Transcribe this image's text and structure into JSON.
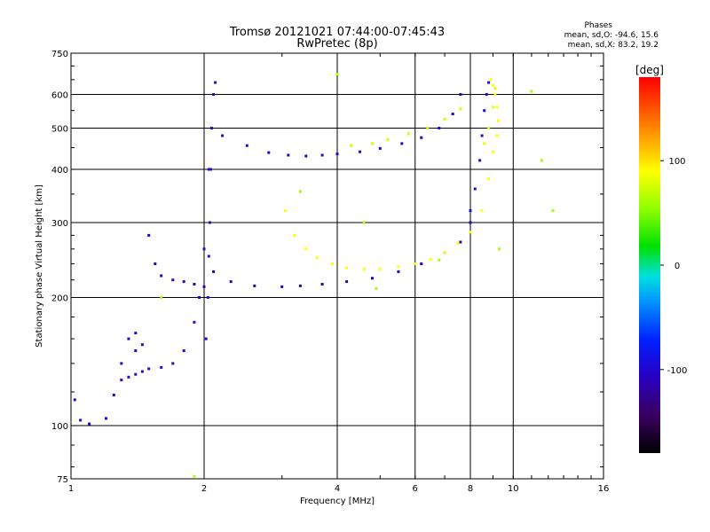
{
  "chart_data": {
    "type": "scatter",
    "title": "Tromsø 20121021 07:44:00-07:45:43",
    "subtitle": "RwPretec (8p)",
    "xlabel": "Frequency [MHz]",
    "ylabel": "Stationary phase Virtual Height [km]",
    "x_scale": "log",
    "y_scale": "log",
    "xlim": [
      1,
      16
    ],
    "ylim": [
      75,
      750
    ],
    "x_ticks": [
      1,
      2,
      4,
      6,
      8,
      10,
      16
    ],
    "x_tick_labels": [
      "1",
      "2",
      "4",
      "6",
      "8",
      "10",
      "16"
    ],
    "y_ticks": [
      75,
      100,
      200,
      300,
      400,
      500,
      600,
      750
    ],
    "y_tick_labels": [
      "75",
      "100",
      "200",
      "300",
      "400",
      "500",
      "600",
      "750"
    ],
    "grid": true,
    "stats": {
      "heading": "Phases",
      "line_o": "mean, sd,O: -94.6, 15.6",
      "line_x": "mean, sd,X:  83.2, 19.2"
    },
    "colorbar": {
      "label": "[deg]",
      "range": [
        -180,
        180
      ],
      "tick_values": [
        100,
        0,
        -100
      ],
      "tick_labels": [
        "100",
        "0",
        "-100"
      ]
    },
    "series": [
      {
        "x": [
          1.02,
          1.05,
          1.1,
          1.2,
          1.25,
          1.3,
          1.35,
          1.4,
          1.45,
          1.5,
          1.6,
          1.7,
          1.8,
          1.9,
          1.95,
          2.0,
          2.05
        ],
        "y": [
          115,
          103,
          101,
          104,
          118,
          128,
          130,
          132,
          134,
          136,
          137,
          140,
          150,
          175,
          200,
          260,
          400
        ],
        "phase": -95
      },
      {
        "x": [
          1.3,
          1.35,
          1.4,
          1.45,
          1.4
        ],
        "y": [
          140,
          160,
          150,
          155,
          165
        ],
        "phase": -100
      },
      {
        "x": [
          1.5,
          1.55,
          1.6,
          1.7,
          1.8,
          1.9,
          2.0
        ],
        "y": [
          280,
          240,
          225,
          220,
          218,
          215,
          212
        ],
        "phase": -105
      },
      {
        "x": [
          2.02,
          2.04,
          2.05,
          2.06,
          2.07,
          2.08,
          2.1,
          2.12
        ],
        "y": [
          160,
          200,
          250,
          300,
          400,
          500,
          600,
          640
        ],
        "phase": -95
      },
      {
        "x": [
          2.1,
          2.3,
          2.6,
          3.0,
          3.3,
          3.7,
          4.2,
          4.8,
          5.5,
          6.2,
          7.0,
          7.6,
          8.0
        ],
        "y": [
          230,
          218,
          213,
          212,
          213,
          215,
          218,
          222,
          230,
          240,
          255,
          270,
          300
        ],
        "phase": -110
      },
      {
        "x": [
          8.0,
          8.2,
          8.4,
          8.5,
          8.6,
          8.7,
          8.8
        ],
        "y": [
          320,
          360,
          420,
          480,
          550,
          600,
          640
        ],
        "phase": -95
      },
      {
        "x": [
          2.2,
          2.5,
          2.8,
          3.1,
          3.4,
          3.7,
          4.0,
          4.5,
          5.0,
          5.6,
          6.2,
          6.8,
          7.3,
          7.6
        ],
        "y": [
          480,
          455,
          438,
          432,
          430,
          432,
          435,
          440,
          448,
          460,
          475,
          500,
          540,
          600
        ],
        "phase": -100
      },
      {
        "x": [
          3.05,
          3.2,
          3.4,
          3.6,
          3.9,
          4.2,
          4.6,
          5.0,
          5.5,
          6.0,
          6.5,
          7.0,
          7.5,
          8.0,
          8.5,
          8.8,
          9.0,
          9.2,
          9.25,
          9.2,
          9.1,
          9.0,
          8.9
        ],
        "y": [
          320,
          280,
          260,
          248,
          240,
          235,
          233,
          233,
          236,
          240,
          246,
          255,
          268,
          285,
          320,
          380,
          440,
          480,
          520,
          560,
          600,
          630,
          650
        ],
        "phase": 90
      },
      {
        "x": [
          8.6,
          8.8,
          9.0,
          9.1
        ],
        "y": [
          460,
          500,
          560,
          620
        ],
        "phase": 80
      },
      {
        "x": [
          4.3,
          4.8,
          5.2,
          5.8,
          6.4,
          7.0,
          7.6
        ],
        "y": [
          455,
          460,
          470,
          485,
          500,
          525,
          555
        ],
        "phase": 75
      },
      {
        "x": [
          3.3,
          4.6,
          11.6,
          11.0,
          12.3,
          1.9,
          1.6,
          4.9,
          6.8,
          9.3,
          4.0
        ],
        "y": [
          355,
          300,
          420,
          610,
          320,
          76,
          200,
          210,
          245,
          260,
          670
        ],
        "phase": 60
      }
    ]
  }
}
